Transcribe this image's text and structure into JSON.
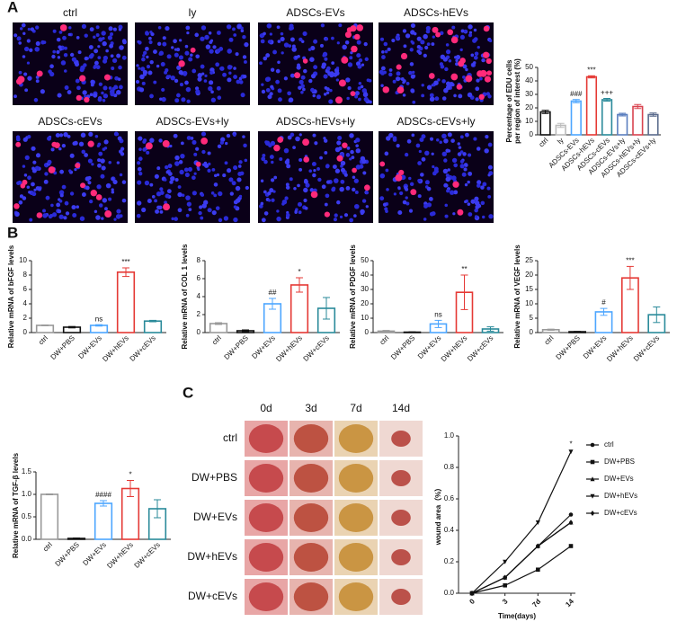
{
  "panels": [
    "A",
    "B",
    "C"
  ],
  "microscopy": {
    "labels": [
      "ctrl",
      "ly",
      "ADSCs-EVs",
      "ADSCs-hEVs",
      "ADSCs-cEVs",
      "ADSCs-EVs+ly",
      "ADSCs-hEVs+ly",
      "ADSCs-cEVs+ly"
    ]
  },
  "wound_photos": {
    "days": [
      "0d",
      "3d",
      "7d",
      "14d"
    ],
    "groups": [
      "ctrl",
      "DW+PBS",
      "DW+EVs",
      "DW+hEVs",
      "DW+cEVs"
    ]
  },
  "chart_data": [
    {
      "type": "bar",
      "ylabel": [
        "Percentage of EDU cells",
        "per region of interest (%)"
      ],
      "categories": [
        "ctrl",
        "ly",
        "ADSCs-EVs",
        "ADSCs-hEVs",
        "ADSCs-cEVs",
        "ADSCs-EVs+ly",
        "ADSCs-hEVs+ly",
        "ADSCs-cEVs+ly"
      ],
      "values": [
        17,
        7,
        25,
        43,
        26,
        15,
        21,
        15
      ],
      "errors": [
        1.2,
        1.5,
        1.2,
        0.8,
        1,
        1,
        1.5,
        1.2
      ],
      "colors": [
        "#111111",
        "#bbbbbb",
        "#4da6ff",
        "#e53935",
        "#2a8a9a",
        "#5b7fbf",
        "#d9434f",
        "#5a6b8c"
      ],
      "annotations": [
        null,
        null,
        "###",
        "***",
        "+++",
        null,
        null,
        null
      ],
      "ylim": [
        0,
        50
      ],
      "yticks": [
        0,
        10,
        20,
        30,
        40,
        50
      ]
    },
    {
      "type": "bar",
      "ylabel": "Relative mRNA of bFGF levels",
      "categories": [
        "ctrl",
        "DW+PBS",
        "DW+EVs",
        "DW+hEVs",
        "DW+cEVs"
      ],
      "values": [
        1,
        0.75,
        1,
        8.4,
        1.6
      ],
      "errors": [
        0.05,
        0.1,
        0.1,
        0.6,
        0.1
      ],
      "colors": [
        "#999999",
        "#111111",
        "#4da6ff",
        "#e53935",
        "#2a8a9a"
      ],
      "annotations": [
        null,
        null,
        "ns",
        "***",
        null
      ],
      "ylim": [
        0,
        10
      ],
      "yticks": [
        0,
        2,
        4,
        6,
        8,
        10
      ]
    },
    {
      "type": "bar",
      "ylabel": "Relative mRNA of COL 1 levels",
      "categories": [
        "ctrl",
        "DW+PBS",
        "DW+EVs",
        "DW+hEVs",
        "DW+cEVs"
      ],
      "values": [
        1,
        0.2,
        3.2,
        5.3,
        2.7
      ],
      "errors": [
        0.1,
        0.1,
        0.6,
        0.8,
        1.2
      ],
      "colors": [
        "#999999",
        "#111111",
        "#4da6ff",
        "#e53935",
        "#2a8a9a"
      ],
      "annotations": [
        null,
        null,
        "##",
        "*",
        null
      ],
      "ylim": [
        0,
        8
      ],
      "yticks": [
        0,
        2,
        4,
        6,
        8
      ]
    },
    {
      "type": "bar",
      "ylabel": "Relative mRNA of PDGF levels",
      "categories": [
        "ctrl",
        "DW+PBS",
        "DW+EVs",
        "DW+hEVs",
        "DW+cEVs"
      ],
      "values": [
        1,
        0.3,
        6,
        28,
        2.5
      ],
      "errors": [
        0.5,
        0.2,
        2.5,
        12,
        1.5
      ],
      "colors": [
        "#999999",
        "#111111",
        "#4da6ff",
        "#e53935",
        "#2a8a9a"
      ],
      "annotations": [
        null,
        null,
        "ns",
        "**",
        null
      ],
      "ylim": [
        0,
        50
      ],
      "yticks": [
        0,
        10,
        20,
        30,
        40,
        50
      ]
    },
    {
      "type": "bar",
      "ylabel": "Relative mRNA of VEGF levels",
      "categories": [
        "ctrl",
        "DW+PBS",
        "DW+EVs",
        "DW+hEVs",
        "DW+cEVs"
      ],
      "values": [
        1,
        0.3,
        7.2,
        19,
        6.2
      ],
      "errors": [
        0.2,
        0.1,
        1.2,
        4,
        2.7
      ],
      "colors": [
        "#999999",
        "#111111",
        "#4da6ff",
        "#e53935",
        "#2a8a9a"
      ],
      "annotations": [
        null,
        null,
        "#",
        "***",
        null
      ],
      "ylim": [
        0,
        25
      ],
      "yticks": [
        0,
        5,
        10,
        15,
        20,
        25
      ]
    },
    {
      "type": "bar",
      "ylabel": "Relative mRNA of TGF-β levels",
      "categories": [
        "ctrl",
        "DW+PBS",
        "DW+EVs",
        "DW+hEVs",
        "DW+cEVs"
      ],
      "values": [
        1,
        0.02,
        0.8,
        1.13,
        0.68
      ],
      "errors": [
        0.01,
        0.01,
        0.06,
        0.18,
        0.2
      ],
      "colors": [
        "#999999",
        "#111111",
        "#4da6ff",
        "#e53935",
        "#2a8a9a"
      ],
      "annotations": [
        null,
        null,
        "####",
        "*",
        null
      ],
      "ylim": [
        0,
        1.5
      ],
      "yticks": [
        {
          "value": 0,
          "label": "0.0"
        },
        {
          "value": 0.5,
          "label": "0.5"
        },
        {
          "value": 1,
          "label": "1.0"
        },
        {
          "value": 1.5,
          "label": "1.5"
        }
      ]
    },
    {
      "type": "line",
      "ylabel": "wound area（%）",
      "xlabel": "Time(days)",
      "categories": [
        "0",
        "3",
        "7d",
        "14"
      ],
      "series": [
        {
          "name": "ctrl",
          "color": "#111111",
          "marker": "circle",
          "values": [
            0,
            0.1,
            0.3,
            0.5
          ]
        },
        {
          "name": "DW+PBS",
          "color": "#111111",
          "marker": "square",
          "values": [
            0,
            0.05,
            0.15,
            0.3
          ]
        },
        {
          "name": "DW+EVs",
          "color": "#111111",
          "marker": "triangle",
          "values": [
            0,
            0.1,
            0.3,
            0.45
          ]
        },
        {
          "name": "DW+hEVs",
          "color": "#111111",
          "marker": "triangle-down",
          "values": [
            0,
            0.2,
            0.45,
            0.9
          ]
        },
        {
          "name": "DW+cEVs",
          "color": "#111111",
          "marker": "diamond",
          "values": [
            0,
            0.1,
            0.3,
            0.45
          ]
        }
      ],
      "annotations": [
        null,
        null,
        null,
        "*"
      ],
      "ylim": [
        0,
        1
      ],
      "yticks": [
        {
          "value": 0,
          "label": "0.0"
        },
        {
          "value": 0.2,
          "label": "0.2"
        },
        {
          "value": 0.4,
          "label": "0.4"
        },
        {
          "value": 0.6,
          "label": "0.6"
        },
        {
          "value": 0.8,
          "label": "0.8"
        },
        {
          "value": 1,
          "label": "1.0"
        }
      ],
      "legend": "right"
    }
  ]
}
